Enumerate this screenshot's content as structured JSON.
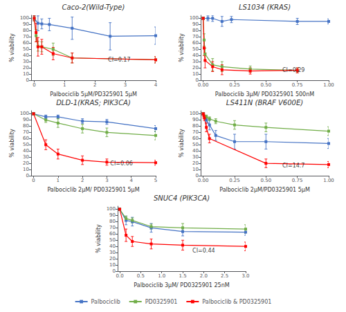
{
  "chart_data": [
    {
      "type": "line",
      "title": "Caco-2(Wild-Type)",
      "xlabel": "Palbociclib 5μM/PD325901 5μM",
      "ylabel": "% viability",
      "xlim": [
        -0.1,
        4
      ],
      "xticks": [
        0,
        1,
        2,
        3,
        4
      ],
      "ylim": [
        0,
        105
      ],
      "yticks": [
        0,
        10,
        20,
        30,
        40,
        50,
        60,
        70,
        80,
        90,
        100
      ],
      "grid": false,
      "legend": "bottom",
      "annotations": [
        {
          "text": "CI=0.17",
          "x": 2.8,
          "y": 28
        }
      ],
      "series": [
        {
          "name": "Palbociclib",
          "color": "#4472C4",
          "marker": "square",
          "line_style": "solid",
          "x": [
            0,
            0.125,
            0.25,
            0.5,
            1.25,
            2.5,
            4.0
          ],
          "values": [
            100,
            92,
            91,
            90,
            84,
            71,
            72
          ],
          "err": [
            4,
            12,
            8,
            10,
            18,
            22,
            14
          ]
        },
        {
          "name": "PD0325901",
          "color": "#70AD47",
          "marker": "square",
          "line_style": "solid",
          "x": [
            0,
            0.0625,
            0.125,
            0.25,
            0.625,
            1.25,
            4.0
          ],
          "values": [
            100,
            72,
            55,
            54,
            50,
            36,
            33
          ],
          "err": [
            4,
            10,
            8,
            8,
            10,
            8,
            5
          ]
        },
        {
          "name": "Palbociclib & PD0325901",
          "color": "#FF0000",
          "marker": "square",
          "line_style": "solid",
          "x": [
            0,
            0.0625,
            0.125,
            0.25,
            0.625,
            1.25,
            4.0
          ],
          "values": [
            100,
            77,
            54,
            54,
            43,
            36,
            33
          ],
          "err": [
            4,
            15,
            15,
            12,
            10,
            8,
            5
          ]
        }
      ]
    },
    {
      "type": "line",
      "title": "LS1034 (KRAS)",
      "xlabel": "Palbociclib 3μM/ PD0325901 500nM",
      "ylabel": "% viability",
      "xlim": [
        -0.02,
        1
      ],
      "xticks": [
        {
          "value": 0,
          "label": "0.00"
        },
        {
          "value": 0.25,
          "label": "0.25"
        },
        {
          "value": 0.5,
          "label": "0.50"
        },
        {
          "value": 0.75,
          "label": "0.75"
        },
        {
          "value": 1.0,
          "label": "1.00"
        }
      ],
      "ylim": [
        0,
        105
      ],
      "yticks": [
        0,
        10,
        20,
        30,
        40,
        50,
        60,
        70,
        80,
        90,
        100
      ],
      "grid": false,
      "legend": "bottom",
      "annotations": [
        {
          "text": "CI=0.29",
          "x": 0.72,
          "y": 11
        }
      ],
      "series": [
        {
          "name": "Palbociclib",
          "color": "#4472C4",
          "marker": "square",
          "line_style": "solid",
          "x": [
            0,
            0.0375,
            0.075,
            0.15,
            0.225,
            0.75,
            1.0
          ],
          "values": [
            100,
            100,
            100,
            95,
            98,
            95,
            95
          ],
          "err": [
            2,
            4,
            5,
            8,
            5,
            5,
            4
          ]
        },
        {
          "name": "PD0325901",
          "color": "#70AD47",
          "marker": "square",
          "line_style": "solid",
          "x": [
            0,
            0.0075,
            0.015,
            0.075,
            0.15,
            0.375,
            0.75
          ],
          "values": [
            100,
            65,
            42,
            25,
            22,
            18,
            16
          ],
          "err": [
            2,
            10,
            10,
            10,
            8,
            5,
            4
          ]
        },
        {
          "name": "Palbociclib & PD0325901",
          "color": "#FF0000",
          "marker": "square",
          "line_style": "solid",
          "x": [
            0,
            0.0075,
            0.015,
            0.075,
            0.15,
            0.375,
            0.75
          ],
          "values": [
            100,
            52,
            32,
            22,
            17,
            15,
            16
          ],
          "err": [
            2,
            12,
            12,
            8,
            8,
            5,
            4
          ]
        }
      ]
    },
    {
      "type": "line",
      "title": "DLD-1(KRAS; PIK3CA)",
      "xlabel": "Palbociclib 2μM/ PD0325901 5μM",
      "ylabel": "% viability",
      "xlim": [
        -0.1,
        5
      ],
      "xticks": [
        0,
        1,
        2,
        3,
        4,
        5
      ],
      "ylim": [
        0,
        105
      ],
      "yticks": [
        0,
        10,
        20,
        30,
        40,
        50,
        60,
        70,
        80,
        90,
        100
      ],
      "grid": false,
      "legend": "bottom",
      "annotations": [
        {
          "text": "CI=0.06",
          "x": 3.6,
          "y": 14
        }
      ],
      "series": [
        {
          "name": "Palbociclib",
          "color": "#4472C4",
          "marker": "square",
          "line_style": "solid",
          "x": [
            0,
            0.5,
            1.0,
            2.0,
            3.0,
            5.0
          ],
          "values": [
            100,
            95,
            95,
            88,
            87,
            76
          ],
          "err": [
            2,
            3,
            3,
            4,
            4,
            5
          ]
        },
        {
          "name": "PD0325901",
          "color": "#70AD47",
          "marker": "square",
          "line_style": "solid",
          "x": [
            0,
            0.5,
            1.0,
            2.0,
            3.0,
            5.0
          ],
          "values": [
            100,
            90,
            85,
            76,
            70,
            65
          ],
          "err": [
            2,
            4,
            7,
            7,
            7,
            7
          ]
        },
        {
          "name": "Palbociclib & PD0325901",
          "color": "#FF0000",
          "marker": "square",
          "line_style": "solid",
          "x": [
            0,
            0.5,
            1.0,
            2.0,
            3.0,
            5.0
          ],
          "values": [
            100,
            50,
            35,
            25,
            22,
            21
          ],
          "err": [
            2,
            8,
            8,
            7,
            5,
            4
          ]
        }
      ]
    },
    {
      "type": "line",
      "title": "LS411N (BRAF V600E)",
      "xlabel": "Palbociclib 2μM/PD0325901 5μM",
      "ylabel": "% viability",
      "xlim": [
        -0.02,
        1
      ],
      "xticks": [
        {
          "value": 0,
          "label": "0.00"
        },
        {
          "value": 0.25,
          "label": "0.25"
        },
        {
          "value": 0.5,
          "label": "0.50"
        },
        {
          "value": 0.75,
          "label": "0.75"
        },
        {
          "value": 1.0,
          "label": "1.00"
        }
      ],
      "ylim": [
        0,
        105
      ],
      "yticks": [
        0,
        10,
        20,
        30,
        40,
        50,
        60,
        70,
        80,
        90,
        100
      ],
      "grid": false,
      "legend": "bottom",
      "annotations": [
        {
          "text": "CI=14.7",
          "x": 0.72,
          "y": 11
        }
      ],
      "series": [
        {
          "name": "Palbociclib",
          "color": "#4472C4",
          "marker": "square",
          "line_style": "solid",
          "x": [
            0,
            0.025,
            0.05,
            0.1,
            0.25,
            0.5,
            1.0
          ],
          "values": [
            100,
            90,
            82,
            65,
            55,
            55,
            52
          ],
          "err": [
            2,
            5,
            8,
            8,
            12,
            12,
            8
          ]
        },
        {
          "name": "PD0325901",
          "color": "#70AD47",
          "marker": "square",
          "line_style": "solid",
          "x": [
            0,
            0.025,
            0.05,
            0.1,
            0.25,
            0.5,
            1.0
          ],
          "values": [
            100,
            95,
            92,
            88,
            82,
            78,
            72
          ],
          "err": [
            2,
            3,
            3,
            4,
            7,
            7,
            7
          ]
        },
        {
          "name": "Palbociclib & PD0325901",
          "color": "#FF0000",
          "marker": "square",
          "line_style": "solid",
          "x": [
            0,
            0.005,
            0.01,
            0.025,
            0.05,
            0.5,
            1.0
          ],
          "values": [
            100,
            97,
            93,
            78,
            60,
            20,
            18
          ],
          "err": [
            2,
            4,
            4,
            7,
            7,
            7,
            5
          ]
        }
      ]
    },
    {
      "type": "line",
      "title": "SNUC4 (PIK3CA)",
      "xlabel": "Palbociclib 3μM/ PD0325901 25nM",
      "ylabel": "% viability",
      "xlim": [
        -0.05,
        3
      ],
      "xticks": [
        {
          "value": 0,
          "label": "0.0"
        },
        {
          "value": 0.5,
          "label": "0.5"
        },
        {
          "value": 1.0,
          "label": "1.0"
        },
        {
          "value": 1.5,
          "label": "1.5"
        },
        {
          "value": 2.0,
          "label": "2.0"
        },
        {
          "value": 2.5,
          "label": "2.5"
        },
        {
          "value": 3.0,
          "label": "3.0"
        }
      ],
      "ylim": [
        0,
        105
      ],
      "yticks": [
        0,
        10,
        20,
        30,
        40,
        50,
        60,
        70,
        80,
        90,
        100
      ],
      "grid": false,
      "legend": "bottom",
      "annotations": [
        {
          "text": "CI=0.44",
          "x": 2.0,
          "y": 28
        }
      ],
      "series": [
        {
          "name": "Palbociclib",
          "color": "#4472C4",
          "marker": "square",
          "line_style": "solid",
          "x": [
            0,
            0.15,
            0.3,
            0.75,
            1.5,
            3.0
          ],
          "values": [
            100,
            82,
            80,
            70,
            64,
            63
          ],
          "err": [
            2,
            7,
            7,
            7,
            7,
            5
          ]
        },
        {
          "name": "PD0325901",
          "color": "#70AD47",
          "marker": "square",
          "line_style": "solid",
          "x": [
            0,
            0.15,
            0.3,
            0.75,
            1.5,
            3.0
          ],
          "values": [
            100,
            85,
            82,
            72,
            70,
            68
          ],
          "err": [
            2,
            4,
            4,
            4,
            7,
            7
          ]
        },
        {
          "name": "Palbociclib & PD0325901",
          "color": "#FF0000",
          "marker": "square",
          "line_style": "solid",
          "x": [
            0,
            0.15,
            0.3,
            0.75,
            1.5,
            3.0
          ],
          "values": [
            100,
            58,
            48,
            44,
            42,
            40
          ],
          "err": [
            2,
            10,
            8,
            8,
            8,
            7
          ]
        }
      ]
    }
  ]
}
